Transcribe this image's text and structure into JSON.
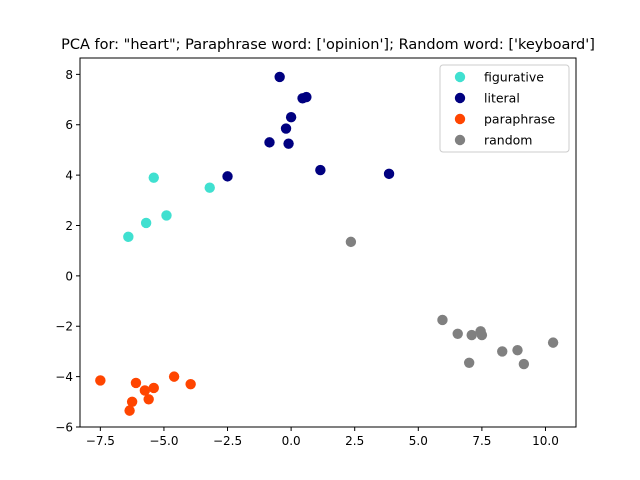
{
  "chart_data": {
    "type": "scatter",
    "title": "PCA for: \"heart\"; Paraphrase word: ['opinion']; Random word: ['keyboard']",
    "xlabel": "",
    "ylabel": "",
    "xlim": [
      -8.3,
      11.2
    ],
    "ylim": [
      -6.0,
      8.65
    ],
    "xticks": [
      -7.5,
      -5.0,
      -2.5,
      0.0,
      2.5,
      5.0,
      7.5,
      10.0
    ],
    "xtick_labels": [
      "−7.5",
      "−5.0",
      "−2.5",
      "0.0",
      "2.5",
      "5.0",
      "7.5",
      "10.0"
    ],
    "yticks": [
      -6,
      -4,
      -2,
      0,
      2,
      4,
      6,
      8
    ],
    "ytick_labels": [
      "−6",
      "−4",
      "−2",
      "0",
      "2",
      "4",
      "6",
      "8"
    ],
    "grid": false,
    "legend_position": "top-right",
    "series": [
      {
        "name": "figurative",
        "color": "#40e0d0",
        "points": [
          [
            -5.4,
            3.9
          ],
          [
            -3.2,
            3.5
          ],
          [
            -4.9,
            2.4
          ],
          [
            -5.7,
            2.1
          ],
          [
            -6.4,
            1.55
          ]
        ]
      },
      {
        "name": "literal",
        "color": "#000080",
        "points": [
          [
            -0.45,
            7.9
          ],
          [
            0.45,
            7.05
          ],
          [
            0.6,
            7.1
          ],
          [
            0.0,
            6.3
          ],
          [
            -0.2,
            5.85
          ],
          [
            -0.85,
            5.3
          ],
          [
            -0.1,
            5.25
          ],
          [
            -2.5,
            3.95
          ],
          [
            1.15,
            4.2
          ],
          [
            3.85,
            4.05
          ]
        ]
      },
      {
        "name": "paraphrase",
        "color": "#ff4500",
        "points": [
          [
            -7.5,
            -4.15
          ],
          [
            -6.1,
            -4.25
          ],
          [
            -5.75,
            -4.55
          ],
          [
            -5.4,
            -4.45
          ],
          [
            -4.6,
            -4.0
          ],
          [
            -3.95,
            -4.3
          ],
          [
            -6.25,
            -5.0
          ],
          [
            -6.35,
            -5.35
          ],
          [
            -5.6,
            -4.9
          ]
        ]
      },
      {
        "name": "random",
        "color": "#808080",
        "points": [
          [
            2.35,
            1.35
          ],
          [
            5.95,
            -1.75
          ],
          [
            6.55,
            -2.3
          ],
          [
            7.1,
            -2.35
          ],
          [
            7.45,
            -2.2
          ],
          [
            7.5,
            -2.35
          ],
          [
            8.3,
            -3.0
          ],
          [
            8.9,
            -2.95
          ],
          [
            7.0,
            -3.45
          ],
          [
            9.15,
            -3.5
          ],
          [
            10.3,
            -2.65
          ]
        ]
      }
    ]
  }
}
